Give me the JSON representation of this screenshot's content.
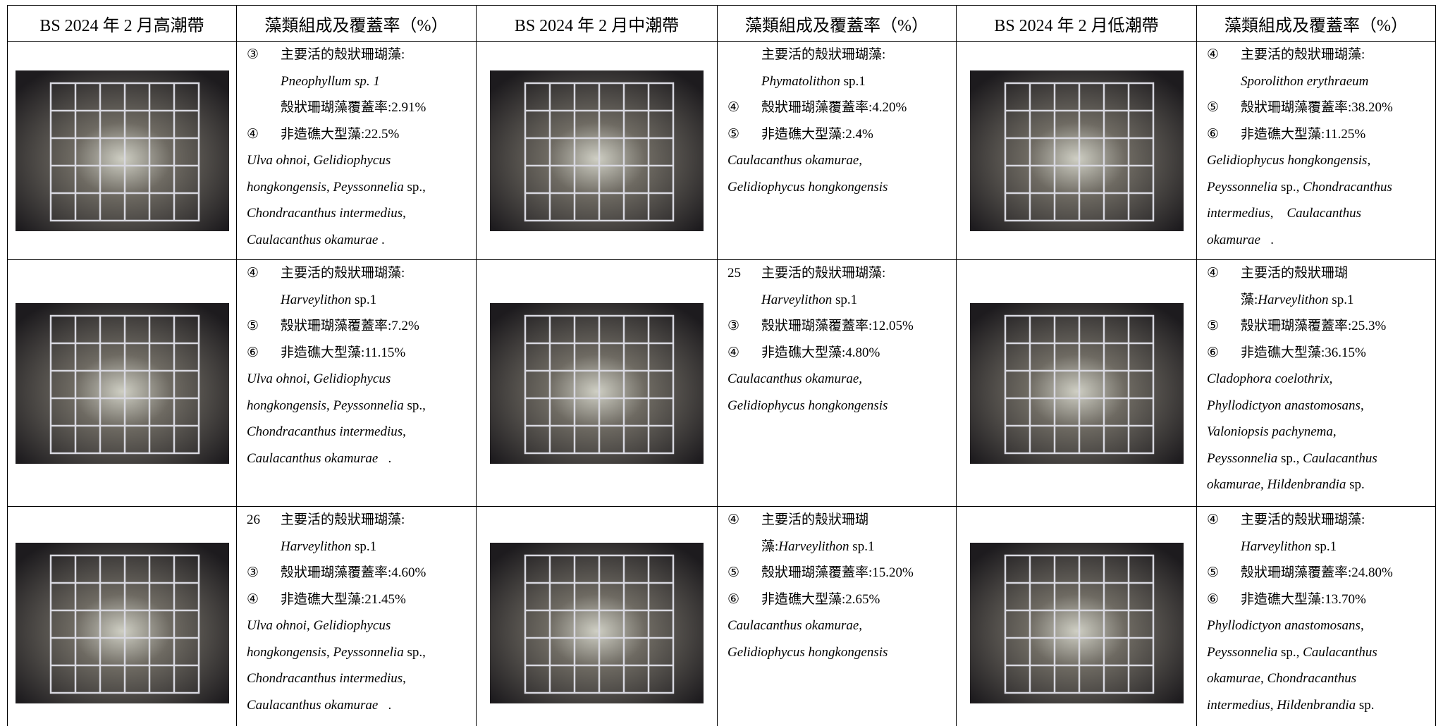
{
  "table": {
    "headers": [
      "BS 2024 年 2 月高潮帶",
      "藻類組成及覆蓋率（%）",
      "BS 2024 年 2 月中潮帶",
      "藻類組成及覆蓋率（%）",
      "BS 2024 年 2 月低潮帶",
      "藻類組成及覆蓋率（%）"
    ],
    "rows": [
      {
        "cells": [
          {
            "items": [
              {
                "marker": "③",
                "lines": [
                  [
                    "主要活的殼狀珊瑚藻:"
                  ],
                  [
                    {
                      "italic": "Pneophyllum sp. 1"
                    }
                  ],
                  [
                    "殼狀珊瑚藻覆蓋率:2.91%"
                  ]
                ]
              },
              {
                "marker": "④",
                "lines": [
                  [
                    "非造礁大型藻:22.5%"
                  ]
                ]
              }
            ],
            "species": [
              [
                {
                  "italic": "Ulva ohnoi"
                },
                ", ",
                {
                  "italic": "Gelidiophycus"
                }
              ],
              [
                {
                  "italic": "hongkongensis"
                },
                ", ",
                {
                  "italic": "Peyssonnelia"
                },
                " sp.,"
              ],
              [
                {
                  "italic": "Chondracanthus intermedius"
                },
                ","
              ],
              [
                {
                  "italic": "Caulacanthus okamurae"
                },
                " ."
              ]
            ]
          },
          {
            "items": [
              {
                "lines": [
                  [
                    "主要活的殼狀珊瑚藻:"
                  ],
                  [
                    {
                      "italic": "Phymatolithon"
                    },
                    " sp.1"
                  ]
                ]
              },
              {
                "marker": "④",
                "lines": [
                  [
                    "殼狀珊瑚藻覆蓋率:4.20%"
                  ]
                ]
              },
              {
                "marker": "⑤",
                "lines": [
                  [
                    "非造礁大型藻:2.4%"
                  ]
                ]
              }
            ],
            "species": [
              [
                {
                  "italic": "Caulacanthus okamurae,"
                }
              ],
              [
                {
                  "italic": "Gelidiophycus hongkongensis"
                }
              ]
            ]
          },
          {
            "items": [
              {
                "marker": "④",
                "lines": [
                  [
                    "主要活的殼狀珊瑚藻:"
                  ],
                  [
                    {
                      "italic": "Sporolithon erythraeum"
                    }
                  ]
                ]
              },
              {
                "marker": "⑤",
                "lines": [
                  [
                    "殼狀珊瑚藻覆蓋率:38.20%"
                  ]
                ]
              },
              {
                "marker": "⑥",
                "lines": [
                  [
                    "非造礁大型藻:11.25%"
                  ]
                ]
              }
            ],
            "species": [
              [
                {
                  "italic": "Gelidiophycus hongkongensis"
                },
                ","
              ],
              [
                {
                  "italic": "Peyssonnelia"
                },
                " sp., ",
                {
                  "italic": "Chondracanthus"
                }
              ],
              [
                {
                  "italic": "intermedius"
                },
                ",    ",
                {
                  "italic": "Caulacanthus"
                }
              ],
              [
                {
                  "italic": "okamurae"
                },
                "   ."
              ]
            ]
          }
        ]
      },
      {
        "cells": [
          {
            "items": [
              {
                "marker": "④",
                "lines": [
                  [
                    "主要活的殼狀珊瑚藻:"
                  ],
                  [
                    {
                      "italic": "Harveylithon"
                    },
                    " sp.1"
                  ]
                ]
              },
              {
                "marker": "⑤",
                "lines": [
                  [
                    "殼狀珊瑚藻覆蓋率:7.2%"
                  ]
                ]
              },
              {
                "marker": "⑥",
                "lines": [
                  [
                    "非造礁大型藻:11.15%"
                  ]
                ]
              }
            ],
            "species": [
              [
                {
                  "italic": "Ulva ohnoi"
                },
                ", ",
                {
                  "italic": "Gelidiophycus"
                }
              ],
              [
                {
                  "italic": "hongkongensis"
                },
                ", ",
                {
                  "italic": "Peyssonnelia"
                },
                " sp.,"
              ],
              [
                {
                  "italic": "Chondracanthus intermedius"
                },
                ","
              ],
              [
                {
                  "italic": "Caulacanthus okamurae"
                },
                "   ."
              ]
            ]
          },
          {
            "items": [
              {
                "marker": "25",
                "lines": [
                  [
                    "主要活的殼狀珊瑚藻:"
                  ],
                  [
                    {
                      "italic": "Harveylithon"
                    },
                    " sp.1"
                  ]
                ]
              },
              {
                "marker": "③",
                "lines": [
                  [
                    "殼狀珊瑚藻覆蓋率:12.05%"
                  ]
                ]
              },
              {
                "marker": "④",
                "lines": [
                  [
                    "非造礁大型藻:4.80%"
                  ]
                ]
              }
            ],
            "species": [
              [
                {
                  "italic": "Caulacanthus okamurae,"
                }
              ],
              [
                {
                  "italic": "Gelidiophycus hongkongensis"
                }
              ]
            ]
          },
          {
            "items": [
              {
                "marker": "④",
                "lines": [
                  [
                    "主要活的殼狀珊瑚"
                  ],
                  [
                    "藻:",
                    {
                      "italic": "Harveylithon"
                    },
                    " sp.1"
                  ]
                ]
              },
              {
                "marker": "⑤",
                "lines": [
                  [
                    "殼狀珊瑚藻覆蓋率:25.3%"
                  ]
                ]
              },
              {
                "marker": "⑥",
                "lines": [
                  [
                    "非造礁大型藻:36.15%"
                  ]
                ]
              }
            ],
            "species": [
              [
                {
                  "italic": "Cladophora coelothrix"
                },
                ","
              ],
              [
                {
                  "italic": "Phyllodictyon anastomosans"
                },
                ","
              ],
              [
                {
                  "italic": "Valoniopsis pachynema"
                },
                ","
              ],
              [
                {
                  "italic": "Peyssonnelia"
                },
                " sp., ",
                {
                  "italic": "Caulacanthus"
                }
              ],
              [
                {
                  "italic": "okamurae, Hildenbrandia"
                },
                " sp."
              ]
            ]
          }
        ]
      },
      {
        "cells": [
          {
            "items": [
              {
                "marker": "26",
                "lines": [
                  [
                    "主要活的殼狀珊瑚藻:"
                  ],
                  [
                    {
                      "italic": "Harveylithon"
                    },
                    " sp.1"
                  ]
                ]
              },
              {
                "marker": "③",
                "lines": [
                  [
                    "殼狀珊瑚藻覆蓋率:4.60%"
                  ]
                ]
              },
              {
                "marker": "④",
                "lines": [
                  [
                    "非造礁大型藻:21.45%"
                  ]
                ]
              }
            ],
            "species": [
              [
                {
                  "italic": "Ulva ohnoi"
                },
                ", ",
                {
                  "italic": "Gelidiophycus"
                }
              ],
              [
                {
                  "italic": "hongkongensis"
                },
                ", ",
                {
                  "italic": "Peyssonnelia"
                },
                " sp.,"
              ],
              [
                {
                  "italic": "Chondracanthus intermedius"
                },
                ","
              ],
              [
                {
                  "italic": "Caulacanthus okamurae"
                },
                "   ."
              ]
            ]
          },
          {
            "items": [
              {
                "marker": "④",
                "lines": [
                  [
                    "主要活的殼狀珊瑚"
                  ],
                  [
                    "藻:",
                    {
                      "italic": "Harveylithon"
                    },
                    " sp.1"
                  ]
                ]
              },
              {
                "marker": "⑤",
                "lines": [
                  [
                    "殼狀珊瑚藻覆蓋率:15.20%"
                  ]
                ]
              },
              {
                "marker": "⑥",
                "lines": [
                  [
                    "非造礁大型藻:2.65%"
                  ]
                ]
              }
            ],
            "species": [
              [
                {
                  "italic": "Caulacanthus okamurae,"
                }
              ],
              [
                {
                  "italic": "Gelidiophycus hongkongensis"
                }
              ]
            ]
          },
          {
            "items": [
              {
                "marker": "④",
                "lines": [
                  [
                    "主要活的殼狀珊瑚藻:"
                  ],
                  [
                    {
                      "italic": "Harveylithon"
                    },
                    " sp.1"
                  ]
                ]
              },
              {
                "marker": "⑤",
                "lines": [
                  [
                    "殼狀珊瑚藻覆蓋率:24.80%"
                  ]
                ]
              },
              {
                "marker": "⑥",
                "lines": [
                  [
                    "非造礁大型藻:13.70%"
                  ]
                ]
              }
            ],
            "species": [
              [
                {
                  "italic": "Phyllodictyon anastomosans"
                },
                ","
              ],
              [
                {
                  "italic": "Peyssonnelia"
                },
                " sp., ",
                {
                  "italic": "Caulacanthus"
                }
              ],
              [
                {
                  "italic": "okamurae, Chondracanthus"
                }
              ],
              [
                {
                  "italic": "intermedius, Hildenbrandia"
                },
                " sp."
              ]
            ]
          }
        ]
      }
    ]
  }
}
